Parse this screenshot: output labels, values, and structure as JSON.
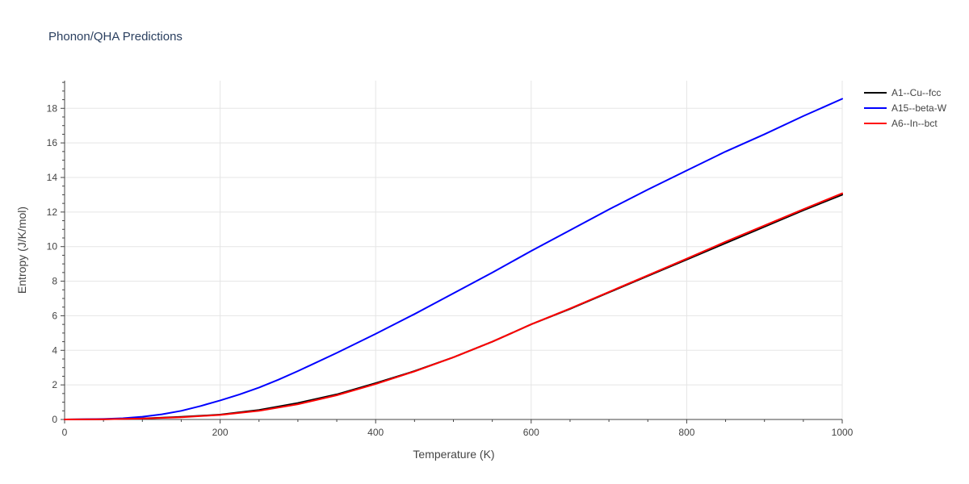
{
  "chart_data": {
    "type": "line",
    "title": "Phonon/QHA Predictions",
    "xlabel": "Temperature (K)",
    "ylabel": "Entropy (J/K/mol)",
    "xlim": [
      0,
      1000
    ],
    "ylim": [
      0,
      19.6
    ],
    "xticks": [
      0,
      200,
      400,
      600,
      800,
      1000
    ],
    "yticks": [
      0,
      2,
      4,
      6,
      8,
      10,
      12,
      14,
      16,
      18
    ],
    "grid": true,
    "legend_position": "top-right",
    "series": [
      {
        "name": "A1--Cu--fcc",
        "color": "#000000",
        "x": [
          0,
          50,
          100,
          150,
          200,
          250,
          300,
          350,
          400,
          450,
          500,
          550,
          600,
          650,
          700,
          750,
          800,
          850,
          900,
          950,
          1000
        ],
        "y": [
          0,
          0.01,
          0.06,
          0.15,
          0.28,
          0.55,
          0.95,
          1.45,
          2.1,
          2.8,
          3.6,
          4.5,
          5.5,
          6.4,
          7.35,
          8.3,
          9.25,
          10.2,
          11.15,
          12.1,
          13.0
        ]
      },
      {
        "name": "A15--beta-W",
        "color": "#0000ff",
        "x": [
          0,
          50,
          75,
          100,
          125,
          150,
          175,
          200,
          225,
          250,
          275,
          300,
          350,
          400,
          450,
          500,
          550,
          600,
          650,
          700,
          750,
          800,
          850,
          900,
          950,
          1000
        ],
        "y": [
          0,
          0.03,
          0.07,
          0.16,
          0.3,
          0.5,
          0.78,
          1.1,
          1.45,
          1.85,
          2.3,
          2.8,
          3.85,
          4.95,
          6.1,
          7.3,
          8.5,
          9.75,
          10.95,
          12.15,
          13.3,
          14.4,
          15.5,
          16.5,
          17.55,
          18.55
        ]
      },
      {
        "name": "A6--In--bct",
        "color": "#ff0000",
        "x": [
          0,
          50,
          100,
          150,
          200,
          250,
          300,
          350,
          400,
          450,
          500,
          550,
          600,
          650,
          700,
          750,
          800,
          850,
          900,
          950,
          1000
        ],
        "y": [
          0,
          0.01,
          0.05,
          0.13,
          0.26,
          0.5,
          0.88,
          1.4,
          2.05,
          2.78,
          3.6,
          4.5,
          5.5,
          6.42,
          7.38,
          8.34,
          9.3,
          10.28,
          11.22,
          12.16,
          13.08
        ]
      }
    ]
  }
}
